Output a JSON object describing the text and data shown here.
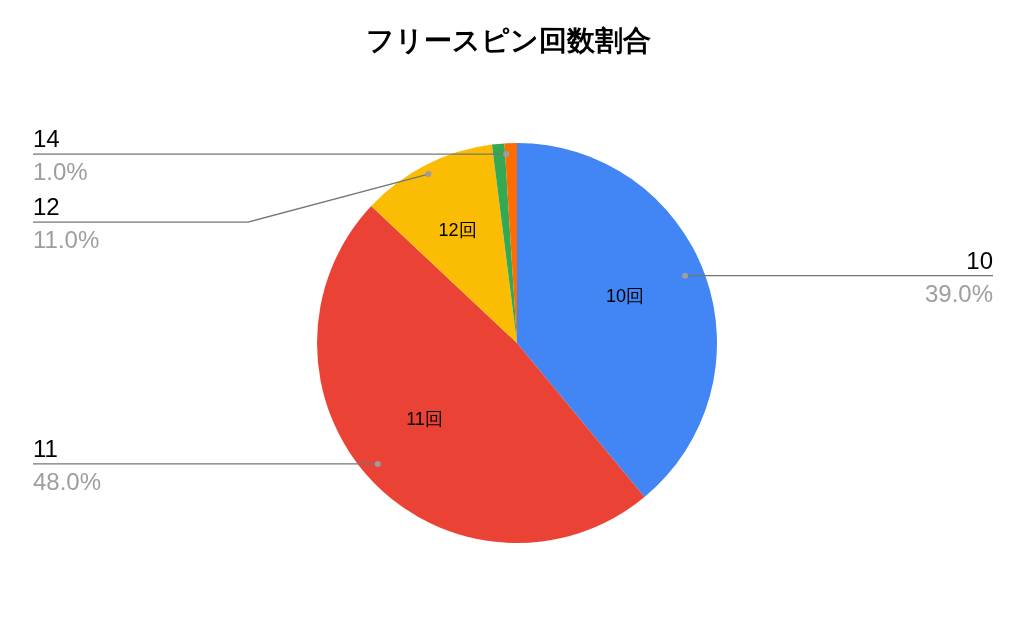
{
  "chart_data": {
    "type": "pie",
    "title": "フリースピン回数割合",
    "categories": [
      "10",
      "11",
      "12",
      null,
      "14"
    ],
    "values": [
      39,
      48,
      11,
      1,
      1
    ],
    "colors": [
      "#4285f4",
      "#ea4335",
      "#fbbc04",
      "#34a853",
      "#ff6d01"
    ],
    "value_labels": [
      "39.0%",
      "48.0%",
      "11.0%",
      null,
      "1.0%"
    ],
    "annotations": [
      {
        "text": "10回",
        "x": "10"
      },
      {
        "text": "11回",
        "x": "11"
      },
      {
        "text": "12回",
        "x": "12"
      }
    ]
  }
}
